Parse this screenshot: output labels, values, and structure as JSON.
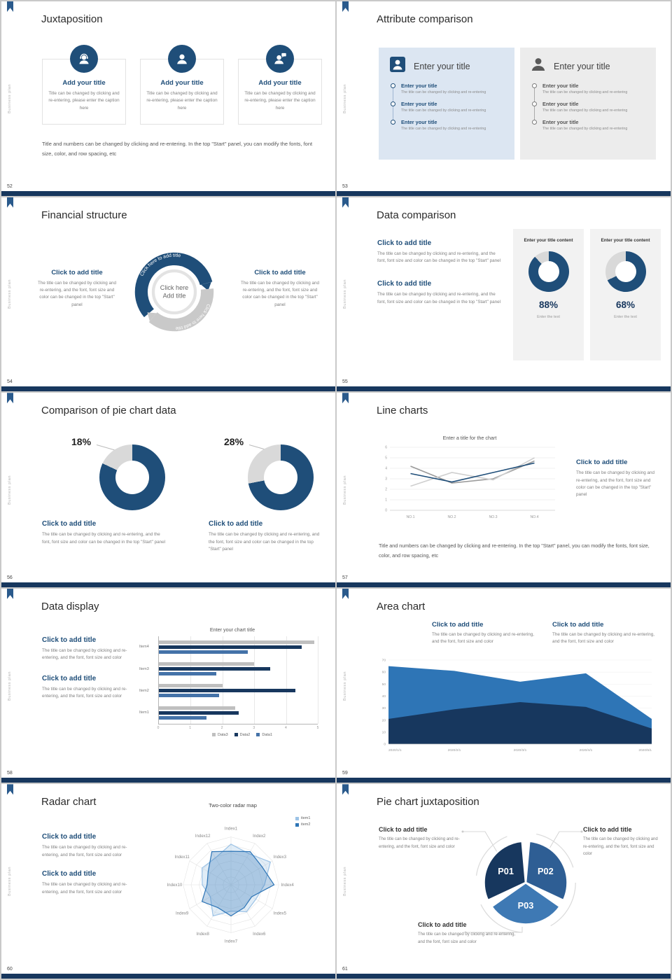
{
  "common": {
    "vertical_label": "Business plan",
    "click_add": "Click to add title",
    "add_your_title": "Add your title",
    "enter_your_title": "Enter your title",
    "caption_box": "Title can be changed by clicking and re-entering, please enter the caption here",
    "caption_long": "The title can be changed by clicking and re-entering, and the font, font size and color can be changed in the top \"Start\" panel",
    "caption_medium": "The title can be changed by clicking and re-entering, and the font, font size and color",
    "caption_short": "The title can be changed by clicking and re-entering",
    "footer_note": "Title and numbers can be changed by clicking and re-entering. In the top \"Start\" panel, you can modify the fonts, font size, color, and row spacing, etc"
  },
  "colors": {
    "navy": "#17375e",
    "blue": "#1f4e79",
    "mid_blue": "#2e75b6",
    "light_blue": "#9dc3e6",
    "gray": "#bfbfbf"
  },
  "slides": {
    "s52": {
      "number": "52",
      "title": "Juxtaposition",
      "columns": [
        {
          "icon": "support-agent"
        },
        {
          "icon": "user"
        },
        {
          "icon": "chat-user"
        }
      ]
    },
    "s53": {
      "number": "53",
      "title": "Attribute comparison",
      "panels": [
        {
          "title": "Enter your title"
        },
        {
          "title": "Enter your title"
        }
      ]
    },
    "s54": {
      "number": "54",
      "title": "Financial structure",
      "arc_label": "Click here to add title",
      "center_line1": "Click here",
      "center_line2": "Add title"
    },
    "s55": {
      "number": "55",
      "title": "Data comparison",
      "cards": [
        {
          "heading": "Enter your title content",
          "percent": 88,
          "percent_label": "88%",
          "footer": "Enter the text"
        },
        {
          "heading": "Enter your title content",
          "percent": 68,
          "percent_label": "68%",
          "footer": "Enter the text"
        }
      ]
    },
    "s56": {
      "number": "56",
      "title": "Comparison of pie chart data",
      "donuts": [
        {
          "label": "18%",
          "percent": 18
        },
        {
          "label": "28%",
          "percent": 28
        }
      ]
    },
    "s57": {
      "number": "57",
      "title": "Line charts",
      "chart_data": {
        "type": "line",
        "title": "Enter a title for the chart",
        "x_labels": [
          "NO.1",
          "NO.2",
          "NO.3",
          "NO.4"
        ],
        "y_ticks": [
          0,
          1,
          2,
          3,
          4,
          5,
          6
        ],
        "ylim": [
          0,
          6
        ],
        "series": [
          {
            "name": "series-gray",
            "color": "#9a9a9a",
            "values": [
              4.2,
              2.6,
              3.0,
              4.7
            ]
          },
          {
            "name": "series-lightgray",
            "color": "#cfcfcf",
            "values": [
              2.3,
              3.6,
              2.9,
              5.0
            ]
          },
          {
            "name": "series-blue",
            "color": "#1f4e79",
            "values": [
              3.5,
              2.7,
              3.6,
              4.5
            ]
          }
        ]
      }
    },
    "s58": {
      "number": "58",
      "title": "Data display",
      "chart_data": {
        "type": "bar-horizontal",
        "title": "Enter your chart title",
        "categories": [
          "Item4",
          "Item3",
          "Item2",
          "Item1"
        ],
        "xlim": [
          0,
          5
        ],
        "x_ticks": [
          0,
          1,
          2,
          3,
          4,
          5
        ],
        "series": [
          {
            "name": "Data3",
            "color": "#bfbfbf",
            "values": [
              4.9,
              3.0,
              2.0,
              2.4
            ]
          },
          {
            "name": "Data2",
            "color": "#17375e",
            "values": [
              4.5,
              3.5,
              4.3,
              2.5
            ]
          },
          {
            "name": "Data1",
            "color": "#4472a8",
            "values": [
              2.8,
              1.8,
              1.9,
              1.5
            ]
          }
        ]
      }
    },
    "s59": {
      "number": "59",
      "title": "Area chart",
      "chart_data": {
        "type": "area",
        "x_labels": [
          "2020/1/1",
          "2020/2/1",
          "2020/3/1",
          "2020/4/1",
          "2020/5/1"
        ],
        "y_ticks": [
          0,
          10,
          20,
          30,
          40,
          50,
          60,
          70
        ],
        "ylim": [
          0,
          70
        ],
        "series": [
          {
            "name": "series-light",
            "color": "#2e75b6",
            "values": [
              65,
              61,
              52,
              59,
              21
            ]
          },
          {
            "name": "series-dark",
            "color": "#17375e",
            "values": [
              21,
              29,
              35,
              31,
              13
            ]
          }
        ]
      }
    },
    "s60": {
      "number": "60",
      "title": "Radar chart",
      "chart_data": {
        "type": "radar",
        "title": "Two-color radar map",
        "labels": [
          "Index1",
          "Index2",
          "Index3",
          "Index4",
          "Index5",
          "Index6",
          "Index7",
          "Index8",
          "Index9",
          "Index10",
          "Index11",
          "Index12"
        ],
        "series": [
          {
            "name": "item1",
            "color": "#9dc3e6",
            "values": [
              0.85,
              0.75,
              0.95,
              0.7,
              0.6,
              0.65,
              0.55,
              0.75,
              0.5,
              0.6,
              0.7,
              0.65
            ]
          },
          {
            "name": "item2",
            "color": "#2e75b6",
            "values": [
              0.7,
              0.8,
              0.75,
              0.9,
              0.5,
              0.55,
              0.65,
              0.55,
              0.7,
              0.5,
              0.55,
              0.8
            ]
          }
        ]
      }
    },
    "s61": {
      "number": "61",
      "title": "Pie chart juxtaposition",
      "chart_data": {
        "type": "pie",
        "slices": [
          {
            "label": "P01",
            "color": "#17375e",
            "start": 245,
            "end": 355
          },
          {
            "label": "P02",
            "color": "#2e5e94",
            "start": 5,
            "end": 115
          },
          {
            "label": "P03",
            "color": "#3e79b4",
            "start": 125,
            "end": 235
          }
        ]
      }
    }
  }
}
